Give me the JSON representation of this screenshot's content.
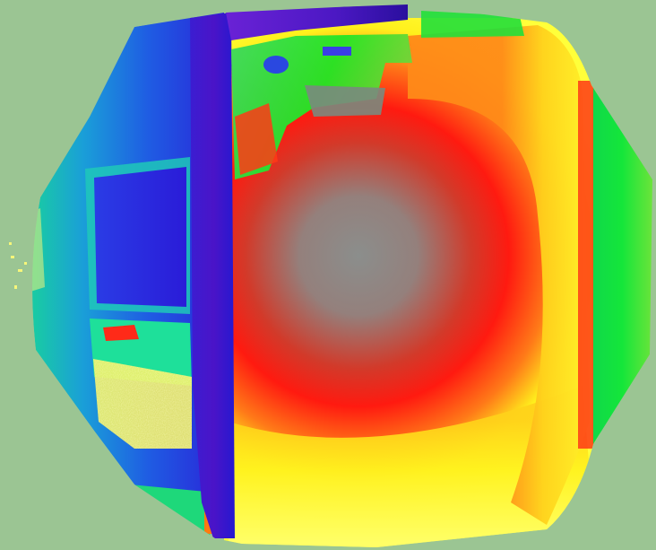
{
  "image": {
    "kind": "fisheye-surface-normal-visualization",
    "background_color": "#9bc593",
    "palette": {
      "blue": "#1f3ee0",
      "deep_blue": "#2617d6",
      "violet": "#5a13c8",
      "cyan": "#1bb6c8",
      "teal": "#1fd8a6",
      "green": "#13e63a",
      "yellow_green": "#b7f028",
      "yellow": "#f7f71e",
      "pale_yellow": "#ffff8a",
      "orange": "#ff9a1a",
      "red": "#ff1a12",
      "gray_center": "#8a8d8b"
    }
  }
}
